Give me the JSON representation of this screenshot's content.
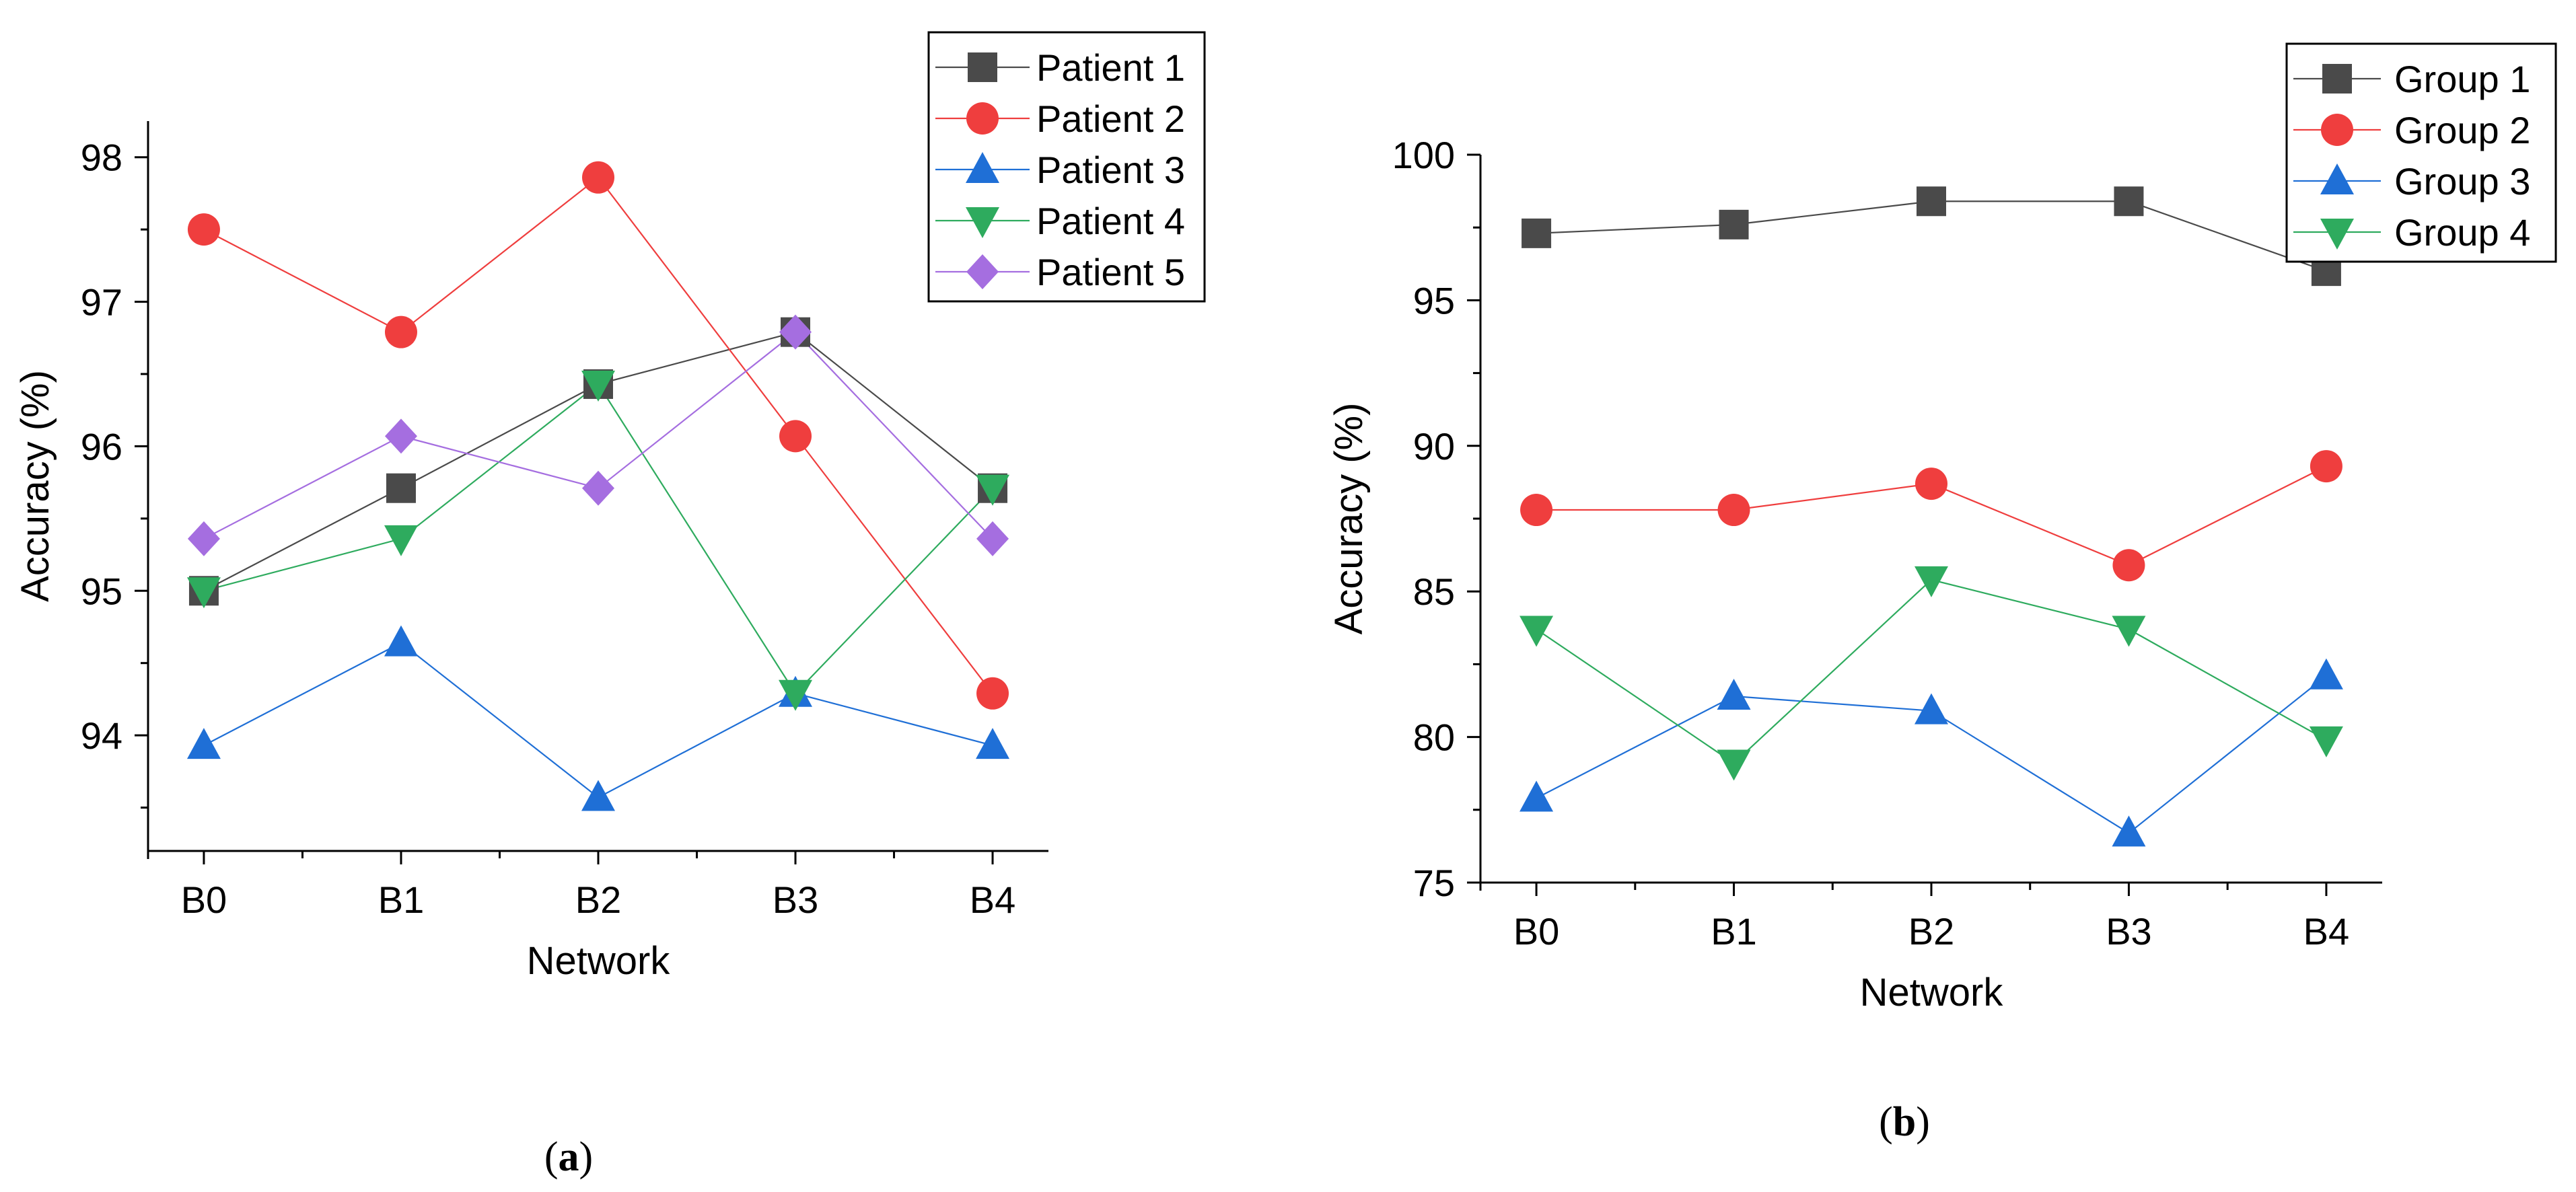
{
  "chart_data": [
    {
      "type": "line",
      "panel_label": "a",
      "xlabel": "Network",
      "ylabel": "Accuracy (%)",
      "categories": [
        "B0",
        "B1",
        "B2",
        "B3",
        "B4"
      ],
      "ylim": [
        93.2,
        98.25
      ],
      "yticks": [
        94,
        95,
        96,
        97,
        98
      ],
      "legend_position": "top-right",
      "series": [
        {
          "name": "Patient 1",
          "color": "#4a4a4a",
          "marker": "square",
          "values": [
            95.0,
            95.71,
            96.43,
            96.79,
            95.71
          ]
        },
        {
          "name": "Patient 2",
          "color": "#ef3e3e",
          "marker": "circle",
          "values": [
            97.5,
            96.79,
            97.86,
            96.07,
            94.29
          ]
        },
        {
          "name": "Patient 3",
          "color": "#1f6fd6",
          "marker": "triangle-up",
          "values": [
            93.93,
            94.64,
            93.57,
            94.29,
            93.93
          ]
        },
        {
          "name": "Patient 4",
          "color": "#2eab5e",
          "marker": "triangle-down",
          "values": [
            95.0,
            95.36,
            96.43,
            94.29,
            95.71
          ]
        },
        {
          "name": "Patient 5",
          "color": "#a56ee0",
          "marker": "diamond",
          "values": [
            95.36,
            96.07,
            95.71,
            96.79,
            95.36
          ]
        }
      ]
    },
    {
      "type": "line",
      "panel_label": "b",
      "xlabel": "Network",
      "ylabel": "Accuracy (%)",
      "categories": [
        "B0",
        "B1",
        "B2",
        "B3",
        "B4"
      ],
      "ylim": [
        75,
        100
      ],
      "yticks": [
        75,
        80,
        85,
        90,
        95,
        100
      ],
      "legend_position": "top-right",
      "series": [
        {
          "name": "Group 1",
          "color": "#4a4a4a",
          "marker": "square",
          "values": [
            97.3,
            97.6,
            98.4,
            98.4,
            96.0
          ]
        },
        {
          "name": "Group 2",
          "color": "#ef3e3e",
          "marker": "circle",
          "values": [
            87.8,
            87.8,
            88.7,
            85.9,
            89.3
          ]
        },
        {
          "name": "Group 3",
          "color": "#1f6fd6",
          "marker": "triangle-up",
          "values": [
            77.9,
            81.4,
            80.9,
            76.7,
            82.1
          ]
        },
        {
          "name": "Group 4",
          "color": "#2eab5e",
          "marker": "triangle-down",
          "values": [
            83.7,
            79.1,
            85.4,
            83.7,
            79.9
          ]
        }
      ]
    }
  ]
}
